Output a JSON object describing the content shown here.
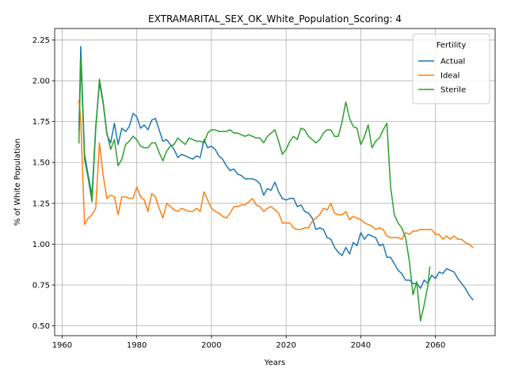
{
  "chart_data": {
    "type": "line",
    "title": "EXTRAMARITAL_SEX_OK_White_Population_Scoring: 4",
    "xlabel": "Years",
    "ylabel": "% of White Population",
    "xlim": [
      1958,
      2076
    ],
    "ylim": [
      0.44,
      2.32
    ],
    "x_ticks": [
      1960,
      1980,
      2000,
      2020,
      2040,
      2060
    ],
    "y_ticks": [
      0.5,
      0.75,
      1.0,
      1.25,
      1.5,
      1.75,
      2.0,
      2.25
    ],
    "x_tick_labels": [
      "1960",
      "1980",
      "2000",
      "2020",
      "2040",
      "2060"
    ],
    "y_tick_labels": [
      "0.50",
      "0.75",
      "1.00",
      "1.25",
      "1.50",
      "1.75",
      "2.00",
      "2.25"
    ],
    "grid": true,
    "legend": {
      "title": "Fertility",
      "position": "top-right"
    },
    "series": [
      {
        "name": "Actual",
        "color": "#1f77b4",
        "points": [
          [
            1964.5,
            1.7
          ],
          [
            1965,
            2.21
          ],
          [
            1966,
            1.55
          ],
          [
            1967,
            1.42
          ],
          [
            1968,
            1.3
          ],
          [
            1969,
            1.72
          ],
          [
            1970,
            1.99
          ],
          [
            1971,
            1.86
          ],
          [
            1972,
            1.67
          ],
          [
            1973,
            1.62
          ],
          [
            1974,
            1.74
          ],
          [
            1975,
            1.61
          ],
          [
            1976,
            1.71
          ],
          [
            1977,
            1.69
          ],
          [
            1978,
            1.72
          ],
          [
            1979,
            1.8
          ],
          [
            1980,
            1.78
          ],
          [
            1981,
            1.71
          ],
          [
            1982,
            1.73
          ],
          [
            1983,
            1.7
          ],
          [
            1984,
            1.76
          ],
          [
            1985,
            1.77
          ],
          [
            1986,
            1.7
          ],
          [
            1987,
            1.63
          ],
          [
            1988,
            1.64
          ],
          [
            1989,
            1.61
          ],
          [
            1990,
            1.58
          ],
          [
            1991,
            1.53
          ],
          [
            1992,
            1.55
          ],
          [
            1993,
            1.54
          ],
          [
            1994,
            1.53
          ],
          [
            1995,
            1.52
          ],
          [
            1996,
            1.54
          ],
          [
            1997,
            1.53
          ],
          [
            1998,
            1.64
          ],
          [
            1999,
            1.59
          ],
          [
            2000,
            1.6
          ],
          [
            2001,
            1.58
          ],
          [
            2002,
            1.54
          ],
          [
            2003,
            1.52
          ],
          [
            2004,
            1.48
          ],
          [
            2005,
            1.45
          ],
          [
            2006,
            1.46
          ],
          [
            2007,
            1.43
          ],
          [
            2008,
            1.42
          ],
          [
            2009,
            1.4
          ],
          [
            2010,
            1.4
          ],
          [
            2011,
            1.4
          ],
          [
            2012,
            1.39
          ],
          [
            2013,
            1.37
          ],
          [
            2014,
            1.3
          ],
          [
            2015,
            1.34
          ],
          [
            2016,
            1.33
          ],
          [
            2017,
            1.38
          ],
          [
            2018,
            1.32
          ],
          [
            2019,
            1.28
          ],
          [
            2020,
            1.27
          ],
          [
            2021,
            1.28
          ],
          [
            2022,
            1.28
          ],
          [
            2023,
            1.23
          ],
          [
            2024,
            1.24
          ],
          [
            2025,
            1.2
          ],
          [
            2026,
            1.19
          ],
          [
            2027,
            1.16
          ],
          [
            2028,
            1.09
          ],
          [
            2029,
            1.1
          ],
          [
            2030,
            1.09
          ],
          [
            2031,
            1.04
          ],
          [
            2032,
            1.03
          ],
          [
            2033,
            0.98
          ],
          [
            2034,
            0.95
          ],
          [
            2035,
            0.93
          ],
          [
            2036,
            0.98
          ],
          [
            2037,
            0.94
          ],
          [
            2038,
            1.01
          ],
          [
            2039,
            0.99
          ],
          [
            2040,
            1.07
          ],
          [
            2041,
            1.03
          ],
          [
            2042,
            1.06
          ],
          [
            2043,
            1.05
          ],
          [
            2044,
            1.04
          ],
          [
            2045,
            0.99
          ],
          [
            2046,
            1.0
          ],
          [
            2047,
            0.92
          ],
          [
            2048,
            0.92
          ],
          [
            2049,
            0.88
          ],
          [
            2050,
            0.84
          ],
          [
            2051,
            0.82
          ],
          [
            2052,
            0.78
          ],
          [
            2053,
            0.78
          ],
          [
            2054,
            0.76
          ],
          [
            2055,
            0.76
          ],
          [
            2056,
            0.73
          ],
          [
            2057,
            0.78
          ],
          [
            2058,
            0.76
          ],
          [
            2059,
            0.81
          ],
          [
            2060,
            0.79
          ],
          [
            2061,
            0.83
          ],
          [
            2062,
            0.82
          ],
          [
            2063,
            0.85
          ],
          [
            2064,
            0.84
          ],
          [
            2065,
            0.83
          ],
          [
            2066,
            0.79
          ],
          [
            2067,
            0.76
          ],
          [
            2068,
            0.73
          ],
          [
            2069,
            0.69
          ],
          [
            2070,
            0.66
          ]
        ]
      },
      {
        "name": "Ideal",
        "color": "#ff7f0e",
        "points": [
          [
            1964.5,
            1.88
          ],
          [
            1965,
            1.76
          ],
          [
            1966,
            1.12
          ],
          [
            1967,
            1.16
          ],
          [
            1968,
            1.18
          ],
          [
            1969,
            1.22
          ],
          [
            1970,
            1.62
          ],
          [
            1971,
            1.42
          ],
          [
            1972,
            1.28
          ],
          [
            1973,
            1.3
          ],
          [
            1974,
            1.29
          ],
          [
            1975,
            1.18
          ],
          [
            1976,
            1.29
          ],
          [
            1977,
            1.29
          ],
          [
            1978,
            1.28
          ],
          [
            1979,
            1.28
          ],
          [
            1980,
            1.35
          ],
          [
            1981,
            1.29
          ],
          [
            1982,
            1.27
          ],
          [
            1983,
            1.2
          ],
          [
            1984,
            1.31
          ],
          [
            1985,
            1.29
          ],
          [
            1986,
            1.22
          ],
          [
            1987,
            1.16
          ],
          [
            1988,
            1.25
          ],
          [
            1989,
            1.23
          ],
          [
            1990,
            1.21
          ],
          [
            1991,
            1.2
          ],
          [
            1992,
            1.22
          ],
          [
            1993,
            1.21
          ],
          [
            1994,
            1.2
          ],
          [
            1995,
            1.2
          ],
          [
            1996,
            1.22
          ],
          [
            1997,
            1.2
          ],
          [
            1998,
            1.32
          ],
          [
            1999,
            1.27
          ],
          [
            2000,
            1.22
          ],
          [
            2001,
            1.2
          ],
          [
            2002,
            1.19
          ],
          [
            2003,
            1.17
          ],
          [
            2004,
            1.16
          ],
          [
            2005,
            1.19
          ],
          [
            2006,
            1.23
          ],
          [
            2007,
            1.23
          ],
          [
            2008,
            1.24
          ],
          [
            2009,
            1.24
          ],
          [
            2010,
            1.26
          ],
          [
            2011,
            1.28
          ],
          [
            2012,
            1.24
          ],
          [
            2013,
            1.23
          ],
          [
            2014,
            1.2
          ],
          [
            2015,
            1.22
          ],
          [
            2016,
            1.23
          ],
          [
            2017,
            1.21
          ],
          [
            2018,
            1.19
          ],
          [
            2019,
            1.13
          ],
          [
            2020,
            1.13
          ],
          [
            2021,
            1.13
          ],
          [
            2022,
            1.1
          ],
          [
            2023,
            1.09
          ],
          [
            2024,
            1.09
          ],
          [
            2025,
            1.1
          ],
          [
            2026,
            1.1
          ],
          [
            2027,
            1.14
          ],
          [
            2028,
            1.16
          ],
          [
            2029,
            1.18
          ],
          [
            2030,
            1.22
          ],
          [
            2031,
            1.21
          ],
          [
            2032,
            1.25
          ],
          [
            2033,
            1.19
          ],
          [
            2034,
            1.18
          ],
          [
            2035,
            1.18
          ],
          [
            2036,
            1.2
          ],
          [
            2037,
            1.15
          ],
          [
            2038,
            1.17
          ],
          [
            2039,
            1.16
          ],
          [
            2040,
            1.15
          ],
          [
            2041,
            1.13
          ],
          [
            2042,
            1.12
          ],
          [
            2043,
            1.11
          ],
          [
            2044,
            1.09
          ],
          [
            2045,
            1.1
          ],
          [
            2046,
            1.09
          ],
          [
            2047,
            1.05
          ],
          [
            2048,
            1.04
          ],
          [
            2049,
            1.04
          ],
          [
            2050,
            1.04
          ],
          [
            2051,
            1.03
          ],
          [
            2052,
            1.07
          ],
          [
            2053,
            1.06
          ],
          [
            2054,
            1.08
          ],
          [
            2055,
            1.08
          ],
          [
            2056,
            1.09
          ],
          [
            2057,
            1.09
          ],
          [
            2058,
            1.09
          ],
          [
            2059,
            1.09
          ],
          [
            2060,
            1.06
          ],
          [
            2061,
            1.06
          ],
          [
            2062,
            1.03
          ],
          [
            2063,
            1.05
          ],
          [
            2064,
            1.03
          ],
          [
            2065,
            1.05
          ],
          [
            2066,
            1.03
          ],
          [
            2067,
            1.03
          ],
          [
            2068,
            1.01
          ],
          [
            2069,
            1.0
          ],
          [
            2070,
            0.98
          ]
        ]
      },
      {
        "name": "Sterile",
        "color": "#2ca02c",
        "points": [
          [
            1964.5,
            1.62
          ],
          [
            1965,
            2.14
          ],
          [
            1966,
            1.52
          ],
          [
            1967,
            1.4
          ],
          [
            1968,
            1.26
          ],
          [
            1969,
            1.7
          ],
          [
            1970,
            2.01
          ],
          [
            1971,
            1.87
          ],
          [
            1972,
            1.68
          ],
          [
            1973,
            1.58
          ],
          [
            1974,
            1.64
          ],
          [
            1975,
            1.48
          ],
          [
            1976,
            1.52
          ],
          [
            1977,
            1.61
          ],
          [
            1978,
            1.63
          ],
          [
            1979,
            1.66
          ],
          [
            1980,
            1.64
          ],
          [
            1981,
            1.6
          ],
          [
            1982,
            1.59
          ],
          [
            1983,
            1.59
          ],
          [
            1984,
            1.62
          ],
          [
            1985,
            1.62
          ],
          [
            1986,
            1.56
          ],
          [
            1987,
            1.51
          ],
          [
            1988,
            1.57
          ],
          [
            1989,
            1.6
          ],
          [
            1990,
            1.61
          ],
          [
            1991,
            1.65
          ],
          [
            1992,
            1.63
          ],
          [
            1993,
            1.61
          ],
          [
            1994,
            1.65
          ],
          [
            1995,
            1.64
          ],
          [
            1996,
            1.63
          ],
          [
            1997,
            1.63
          ],
          [
            1998,
            1.62
          ],
          [
            1999,
            1.68
          ],
          [
            2000,
            1.7
          ],
          [
            2001,
            1.7
          ],
          [
            2002,
            1.69
          ],
          [
            2003,
            1.69
          ],
          [
            2004,
            1.69
          ],
          [
            2005,
            1.7
          ],
          [
            2006,
            1.68
          ],
          [
            2007,
            1.68
          ],
          [
            2008,
            1.67
          ],
          [
            2009,
            1.66
          ],
          [
            2010,
            1.67
          ],
          [
            2011,
            1.66
          ],
          [
            2012,
            1.65
          ],
          [
            2013,
            1.65
          ],
          [
            2014,
            1.62
          ],
          [
            2015,
            1.66
          ],
          [
            2016,
            1.68
          ],
          [
            2017,
            1.7
          ],
          [
            2018,
            1.63
          ],
          [
            2019,
            1.55
          ],
          [
            2020,
            1.58
          ],
          [
            2021,
            1.63
          ],
          [
            2022,
            1.66
          ],
          [
            2023,
            1.64
          ],
          [
            2024,
            1.71
          ],
          [
            2025,
            1.7
          ],
          [
            2026,
            1.66
          ],
          [
            2027,
            1.64
          ],
          [
            2028,
            1.62
          ],
          [
            2029,
            1.64
          ],
          [
            2030,
            1.68
          ],
          [
            2031,
            1.7
          ],
          [
            2032,
            1.7
          ],
          [
            2033,
            1.66
          ],
          [
            2034,
            1.66
          ],
          [
            2035,
            1.75
          ],
          [
            2036,
            1.87
          ],
          [
            2037,
            1.77
          ],
          [
            2038,
            1.72
          ],
          [
            2039,
            1.71
          ],
          [
            2040,
            1.61
          ],
          [
            2041,
            1.66
          ],
          [
            2042,
            1.73
          ],
          [
            2043,
            1.59
          ],
          [
            2044,
            1.63
          ],
          [
            2045,
            1.65
          ],
          [
            2046,
            1.7
          ],
          [
            2047,
            1.74
          ],
          [
            2048,
            1.35
          ],
          [
            2049,
            1.18
          ],
          [
            2050,
            1.13
          ],
          [
            2051,
            1.1
          ],
          [
            2052,
            1.04
          ],
          [
            2053,
            0.9
          ],
          [
            2054,
            0.69
          ],
          [
            2055,
            0.77
          ],
          [
            2056,
            0.53
          ],
          [
            2057,
            0.63
          ],
          [
            2058,
            0.75
          ],
          [
            2058.5,
            0.86
          ]
        ]
      }
    ]
  }
}
